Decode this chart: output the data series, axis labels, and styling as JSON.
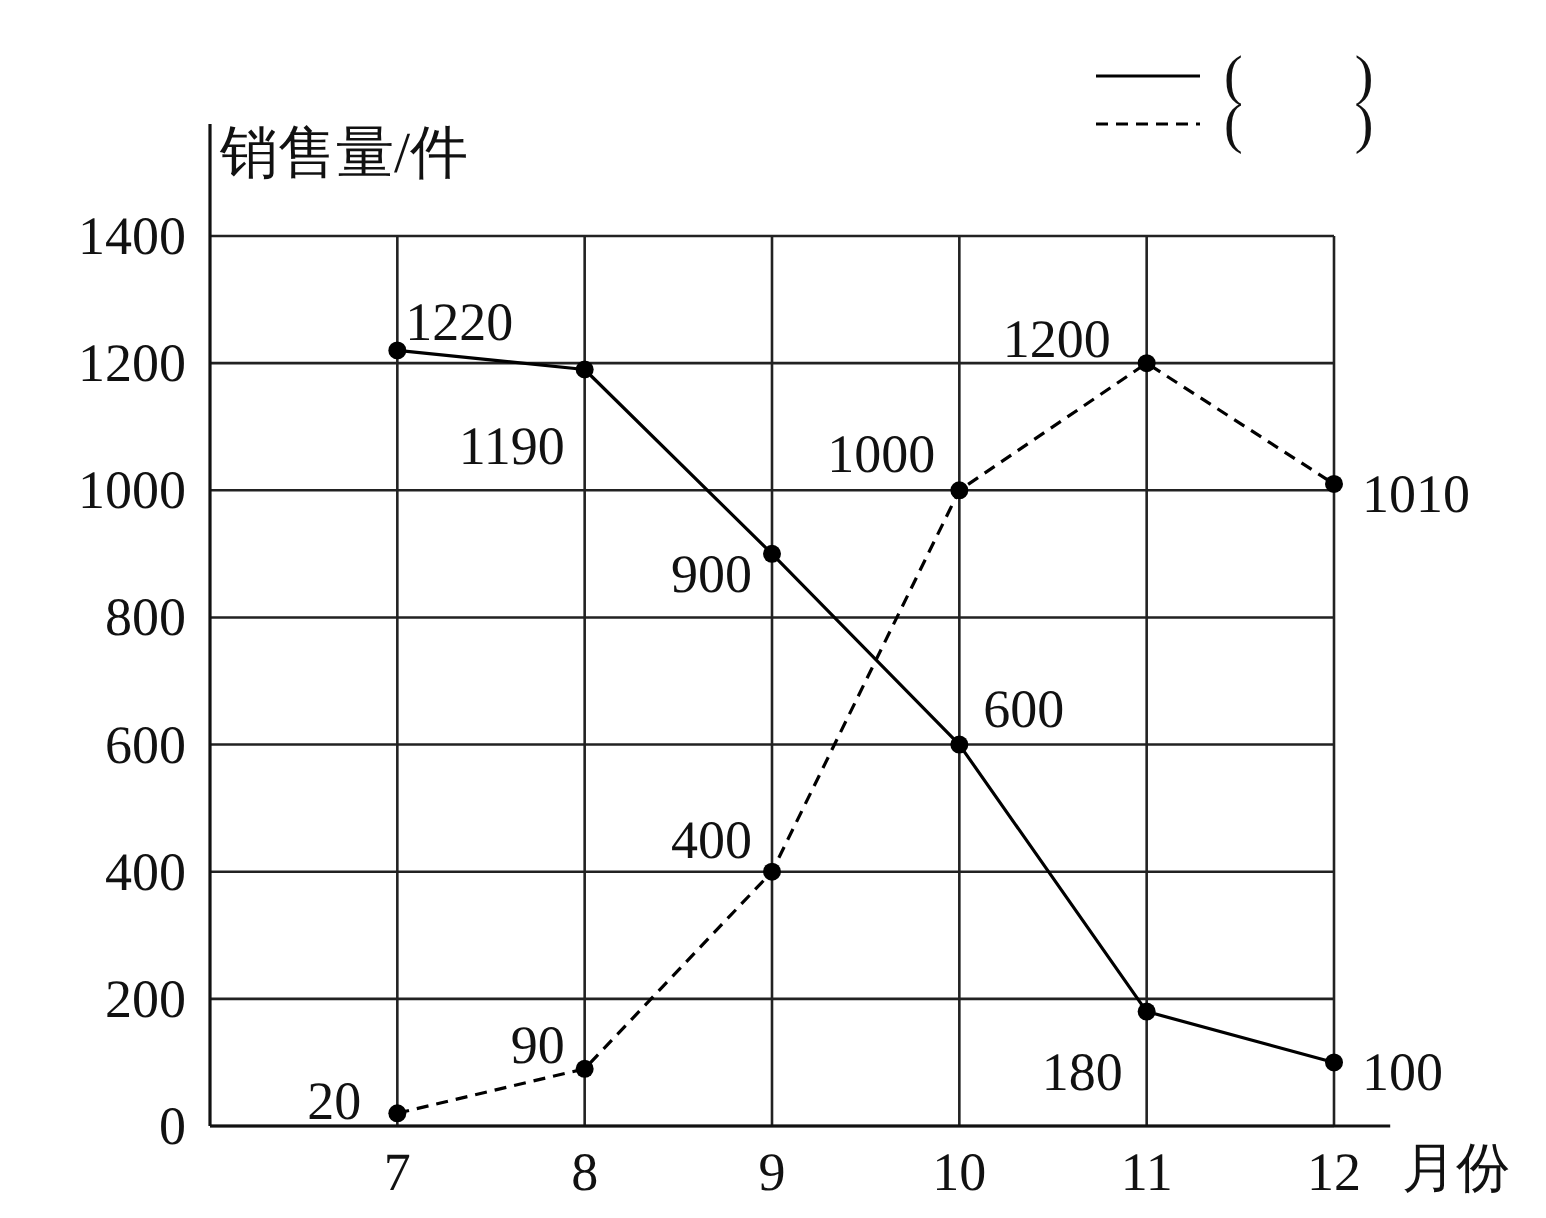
{
  "chart_data": {
    "type": "line",
    "ylabel": "销售量/件",
    "xlabel": "月份",
    "x": [
      7,
      8,
      9,
      10,
      11,
      12
    ],
    "xlim": [
      6,
      12.3
    ],
    "xticks": [
      7,
      8,
      9,
      10,
      11,
      12
    ],
    "ylim": [
      0,
      1400
    ],
    "yticks": [
      0,
      200,
      400,
      600,
      800,
      1000,
      1200,
      1400
    ],
    "grid": true,
    "marker": "circle",
    "data_labels": true,
    "legend": "top right",
    "series": [
      {
        "name": "(        )",
        "color": "#000000",
        "line_style": "solid",
        "values": [
          1220,
          1190,
          900,
          600,
          180,
          100
        ]
      },
      {
        "name": "(        )",
        "color": "#000000",
        "line_style": "dashed",
        "values": [
          20,
          90,
          400,
          1000,
          1200,
          1010
        ]
      }
    ]
  }
}
